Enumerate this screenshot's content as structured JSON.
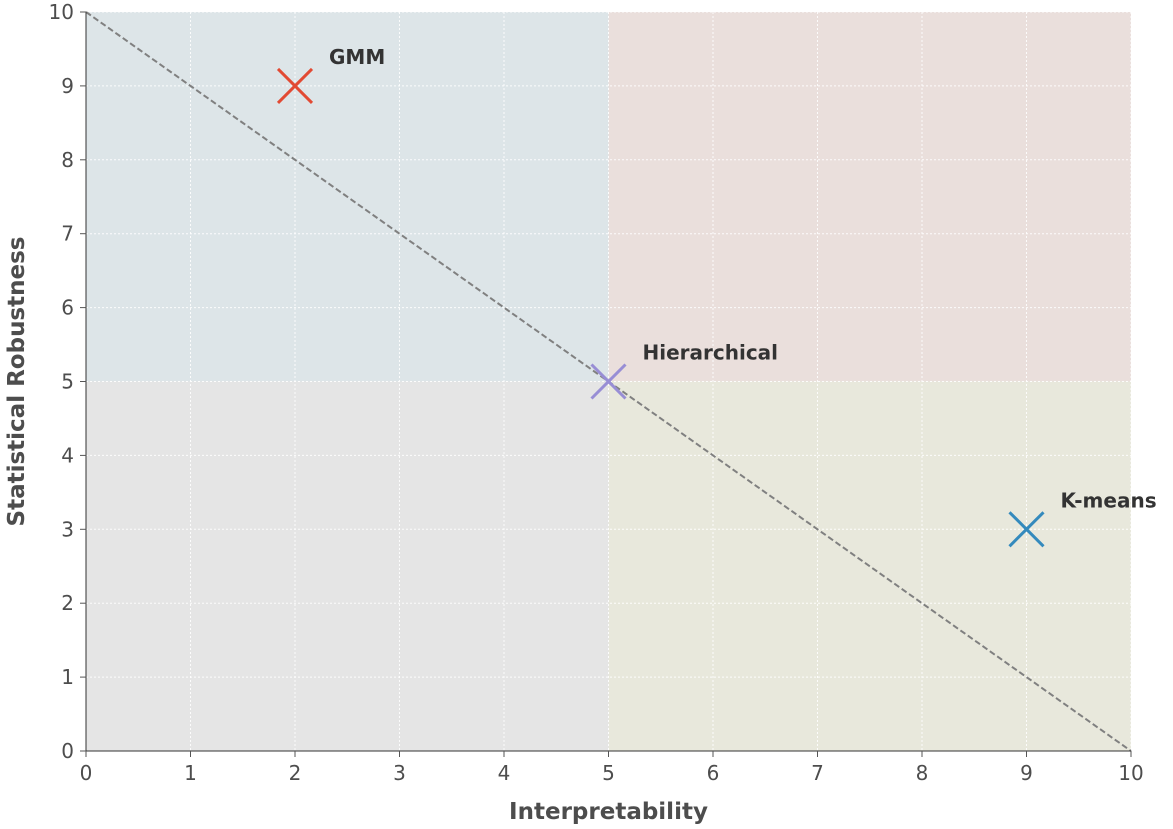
{
  "chart_data": {
    "type": "scatter",
    "title": "",
    "xlabel": "Interpretability",
    "ylabel": "Statistical Robustness",
    "xlim": [
      0,
      10
    ],
    "ylim": [
      0,
      10
    ],
    "xticks": [
      "0",
      "1",
      "2",
      "3",
      "4",
      "5",
      "6",
      "7",
      "8",
      "9",
      "10"
    ],
    "yticks": [
      "0",
      "1",
      "2",
      "3",
      "4",
      "5",
      "6",
      "7",
      "8",
      "9",
      "10"
    ],
    "grid": true,
    "points": [
      {
        "label": "GMM",
        "x": 2,
        "y": 9,
        "marker": "x",
        "color": "#e24a33"
      },
      {
        "label": "Hierarchical",
        "x": 5,
        "y": 5,
        "marker": "x",
        "color": "#988ed5"
      },
      {
        "label": "K-means",
        "x": 9,
        "y": 3,
        "marker": "x",
        "color": "#348abd"
      }
    ],
    "quadrants": [
      {
        "x": [
          0,
          5
        ],
        "y": [
          5,
          10
        ],
        "color": "#dde5e8"
      },
      {
        "x": [
          5,
          10
        ],
        "y": [
          5,
          10
        ],
        "color": "#eadfdc"
      },
      {
        "x": [
          0,
          5
        ],
        "y": [
          0,
          5
        ],
        "color": "#e5e5e5"
      },
      {
        "x": [
          5,
          10
        ],
        "y": [
          0,
          5
        ],
        "color": "#e8e8dc"
      }
    ],
    "reference_line": {
      "from": [
        0,
        10
      ],
      "to": [
        10,
        0
      ],
      "style": "dashed",
      "color": "#808080"
    }
  }
}
